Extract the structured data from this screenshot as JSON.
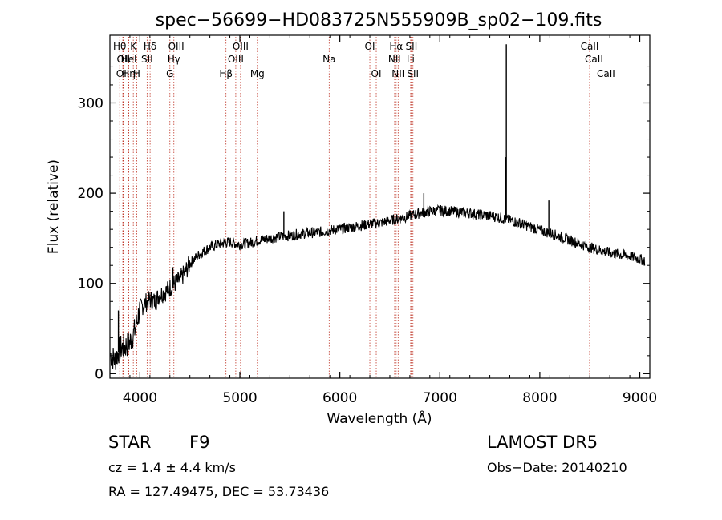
{
  "chart_data": {
    "type": "line",
    "title": "spec−56699−HD083725N555909B_sp02−109.fits",
    "xlabel": "Wavelength (Å)",
    "ylabel": "Flux (relative)",
    "xlim": [
      3700,
      9100
    ],
    "ylim": [
      -5,
      375
    ],
    "xticks": [
      4000,
      5000,
      6000,
      7000,
      8000,
      9000
    ],
    "yticks": [
      0,
      100,
      200,
      300
    ],
    "grid": false,
    "series": [
      {
        "x": [
          3700,
          3750,
          3800,
          3850,
          3900,
          3950,
          4000,
          4050,
          4100,
          4150,
          4200,
          4250,
          4300,
          4350,
          4400,
          4450,
          4500,
          4600,
          4700,
          4800,
          4900,
          5000,
          5100,
          5200,
          5300,
          5400,
          5500,
          5600,
          5700,
          5800,
          5900,
          6000,
          6100,
          6200,
          6300,
          6400,
          6500,
          6600,
          6700,
          6800,
          6900,
          7000,
          7100,
          7200,
          7300,
          7400,
          7500,
          7600,
          7700,
          7800,
          7900,
          8000,
          8100,
          8200,
          8300,
          8400,
          8500,
          8600,
          8700,
          8800,
          8900,
          9000,
          9050
        ],
        "y": [
          22,
          15,
          28,
          30,
          35,
          48,
          72,
          78,
          82,
          80,
          88,
          90,
          95,
          100,
          104,
          112,
          122,
          133,
          140,
          144,
          146,
          143,
          145,
          148,
          150,
          152,
          153,
          155,
          156,
          157,
          159,
          160,
          162,
          164,
          166,
          167,
          170,
          172,
          175,
          178,
          180,
          181,
          180,
          179,
          178,
          176,
          175,
          173,
          170,
          167,
          163,
          159,
          156,
          152,
          148,
          144,
          140,
          137,
          134,
          132,
          130,
          127,
          125
        ]
      }
    ],
    "spikes": [
      {
        "x": 7665,
        "y": 365
      },
      {
        "x": 7661,
        "y": 240
      },
      {
        "x": 8090,
        "y": 192
      },
      {
        "x": 6840,
        "y": 200
      },
      {
        "x": 5440,
        "y": 180
      },
      {
        "x": 4330,
        "y": 118
      },
      {
        "x": 3785,
        "y": 70
      }
    ],
    "line_markers": [
      {
        "x": 3798,
        "label": "Hθ",
        "row": 1
      },
      {
        "x": 3835,
        "label": "OII",
        "row": 2
      },
      {
        "x": 3829,
        "label": "OII",
        "row": 3
      },
      {
        "x": 3889,
        "label": "Hη",
        "row": 3
      },
      {
        "x": 3934,
        "label": "K",
        "row": 1
      },
      {
        "x": 3968,
        "label": "H",
        "row": 3
      },
      {
        "x": 3889,
        "label": "HeI",
        "row": 2
      },
      {
        "x": 4072,
        "label": "SII",
        "row": 2
      },
      {
        "x": 4102,
        "label": "Hδ",
        "row": 1
      },
      {
        "x": 4300,
        "label": "G",
        "row": 3
      },
      {
        "x": 4340,
        "label": "Hγ",
        "row": 2
      },
      {
        "x": 4363,
        "label": "OIII",
        "row": 1
      },
      {
        "x": 4861,
        "label": "Hβ",
        "row": 3
      },
      {
        "x": 4959,
        "label": "OIII",
        "row": 2
      },
      {
        "x": 5007,
        "label": "OIII",
        "row": 1
      },
      {
        "x": 5175,
        "label": "Mg",
        "row": 3
      },
      {
        "x": 5893,
        "label": "Na",
        "row": 2
      },
      {
        "x": 6300,
        "label": "OI",
        "row": 1
      },
      {
        "x": 6364,
        "label": "OI",
        "row": 3
      },
      {
        "x": 6548,
        "label": "NII",
        "row": 2
      },
      {
        "x": 6563,
        "label": "Hα",
        "row": 1
      },
      {
        "x": 6583,
        "label": "NII",
        "row": 3
      },
      {
        "x": 6708,
        "label": "Li",
        "row": 2
      },
      {
        "x": 6716,
        "label": "SII",
        "row": 1
      },
      {
        "x": 6731,
        "label": "SII",
        "row": 3
      },
      {
        "x": 8498,
        "label": "CaII",
        "row": 1
      },
      {
        "x": 8542,
        "label": "CaII",
        "row": 2
      },
      {
        "x": 8662,
        "label": "CaII",
        "row": 3
      }
    ]
  },
  "info": {
    "object_class": "STAR",
    "subclass": "F9",
    "survey": "LAMOST DR5",
    "cz_line": "cz = 1.4 ± 4.4 km/s",
    "obs_date": "Obs−Date: 20140210",
    "coords": "RA = 127.49475, DEC =  53.73436"
  }
}
